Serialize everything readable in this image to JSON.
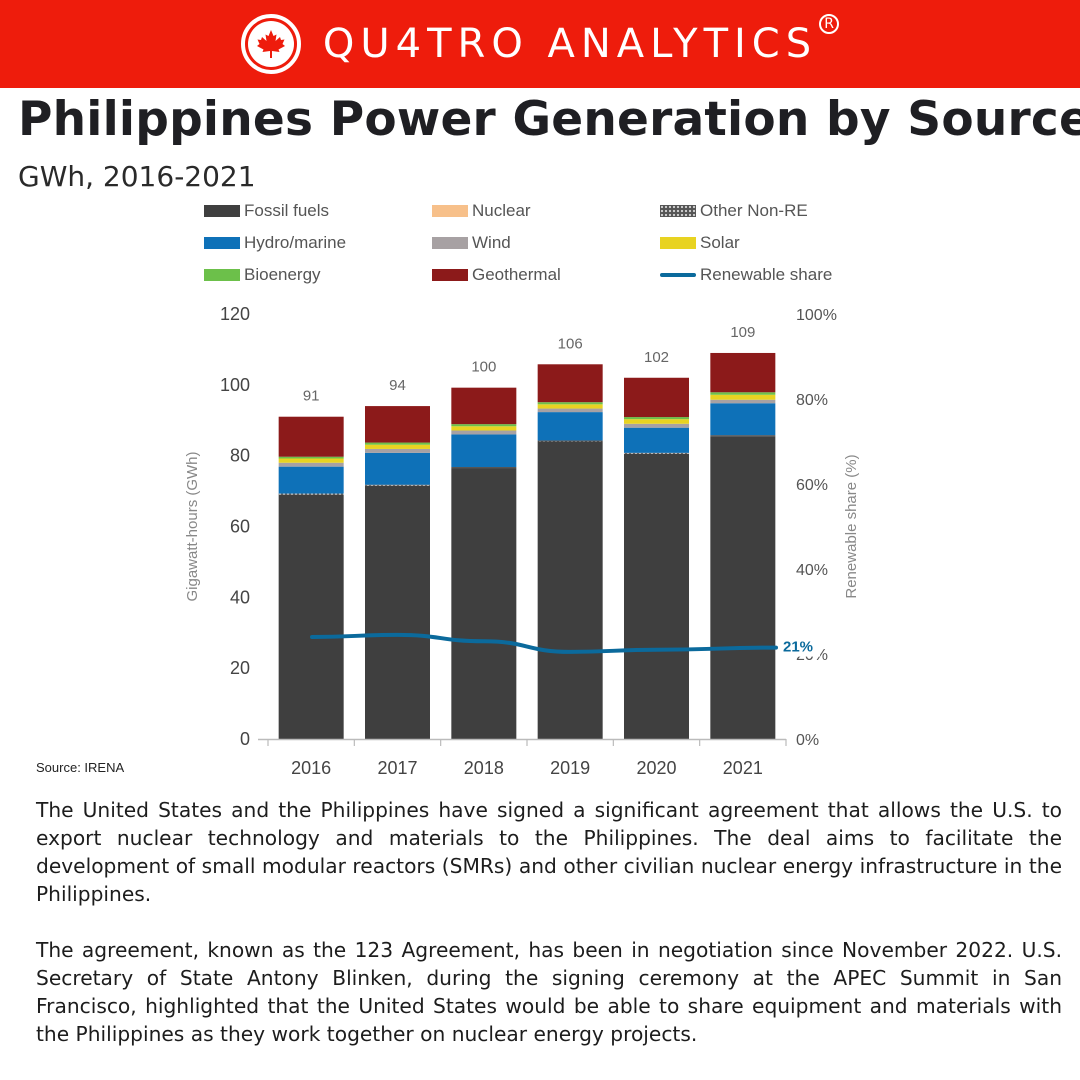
{
  "header": {
    "brand": "QU4TRO ANALYTICS",
    "registered_mark": "R",
    "logo_icon": "maple-leaf-icon",
    "colors": {
      "banner": "#ee1c0c",
      "text": "#ffffff"
    }
  },
  "title": "Philippines Power Generation by Source",
  "subtitle": "GWh, 2016-2021",
  "source": "Source: IRENA",
  "chart_data": {
    "type": "bar",
    "stacked": true,
    "categories": [
      "2016",
      "2017",
      "2018",
      "2019",
      "2020",
      "2021"
    ],
    "totals": [
      91,
      94,
      100,
      106,
      102,
      109
    ],
    "series": [
      {
        "name": "Fossil fuels",
        "color": "#3f3f3f",
        "values": [
          69,
          71.5,
          76.5,
          84,
          80.5,
          85.5
        ]
      },
      {
        "name": "Nuclear",
        "color": "#f7c08a",
        "values": [
          0,
          0,
          0,
          0,
          0,
          0
        ]
      },
      {
        "name": "Other Non-RE",
        "color": "#555555",
        "pattern": "dots",
        "values": [
          0.3,
          0.3,
          0.3,
          0.3,
          0.3,
          0.3
        ]
      },
      {
        "name": "Hydro/marine",
        "color": "#0e71b8",
        "values": [
          7.6,
          9,
          9.2,
          8,
          7.1,
          9
        ]
      },
      {
        "name": "Wind",
        "color": "#a7a1a3",
        "values": [
          1.1,
          1.1,
          1.1,
          1,
          1.1,
          1
        ]
      },
      {
        "name": "Solar",
        "color": "#e8d321",
        "values": [
          1.2,
          1.2,
          1.2,
          1.2,
          1.3,
          1.4
        ]
      },
      {
        "name": "Bioenergy",
        "color": "#6cc04a",
        "values": [
          0.5,
          0.6,
          0.6,
          0.6,
          0.6,
          0.7
        ]
      },
      {
        "name": "Geothermal",
        "color": "#8c1a1a",
        "values": [
          11.3,
          10.3,
          10.3,
          10.7,
          11.1,
          11.1
        ]
      }
    ],
    "line_series": {
      "name": "Renewable share",
      "color": "#0b6a9c",
      "axis": "right",
      "values": [
        24,
        24.5,
        23,
        20.5,
        21,
        21.5
      ]
    },
    "line_label": "21%",
    "left_axis": {
      "label": "Gigawatt-hours (GWh)",
      "ylim": [
        0,
        120
      ],
      "ticks": [
        "0",
        "20",
        "40",
        "60",
        "80",
        "100",
        "120"
      ]
    },
    "right_axis": {
      "label": "Renewable share (%)",
      "ylim": [
        0,
        100
      ],
      "ticks": [
        "0%",
        "20%",
        "40%",
        "60%",
        "80%",
        "100%"
      ]
    },
    "grid": false,
    "legend_placement": "top"
  },
  "body": {
    "paragraph1": "The United States and the Philippines have signed a significant agreement that allows the U.S. to export nuclear technology and materials to the Philippines. The deal aims to facilitate the development of small modular reactors (SMRs) and other civilian nuclear energy infrastructure in the Philippines.",
    "paragraph2": "The agreement, known as the 123 Agreement, has been in negotiation since November 2022. U.S. Secretary of State Antony Blinken, during the signing ceremony at the APEC Summit in San Francisco, highlighted that the United States would be able to share equipment and materials with the Philippines as they work together on nuclear energy projects."
  }
}
